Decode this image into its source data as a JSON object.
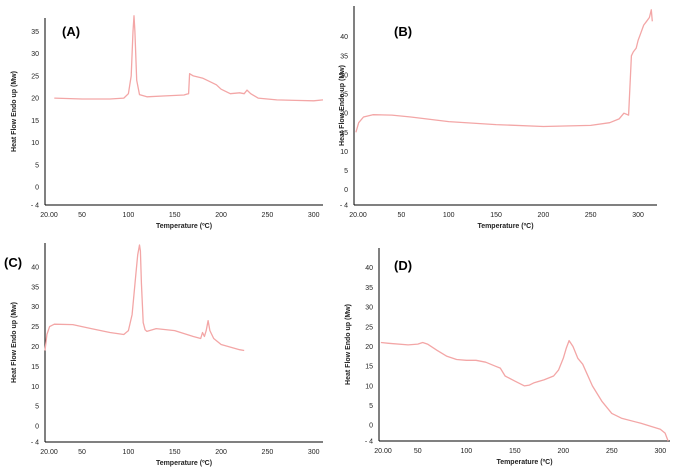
{
  "chart_data": [
    {
      "type": "line",
      "panel_label": "(A)",
      "xlabel": "Temperature (ºC)",
      "ylabel": "Heat Flow Endo up (Mw)",
      "xlim": [
        10,
        310
      ],
      "ylim": [
        -4,
        38
      ],
      "x_ticks": [
        "20.00",
        "50",
        "100",
        "150",
        "200",
        "250",
        "300"
      ],
      "y_ticks": [
        "35",
        "30",
        "25",
        "20",
        "15",
        "10",
        "5",
        "0",
        "- 4"
      ],
      "series": [
        {
          "x": [
            20,
            50,
            80,
            95,
            100,
            103,
            105,
            106,
            107,
            109,
            112,
            120,
            140,
            160,
            163,
            165,
            166,
            170,
            180,
            190,
            195,
            200,
            210,
            220,
            225,
            228,
            232,
            240,
            260,
            280,
            300,
            310
          ],
          "y": [
            20,
            19.8,
            19.8,
            20,
            21,
            25,
            35,
            38.5,
            35,
            24,
            20.8,
            20.3,
            20.5,
            20.7,
            20.9,
            21,
            25.5,
            25,
            24.5,
            23.5,
            23,
            22,
            21,
            21.2,
            21,
            21.8,
            21,
            20,
            19.6,
            19.5,
            19.4,
            19.6
          ]
        }
      ]
    },
    {
      "type": "line",
      "panel_label": "(B)",
      "xlabel": "Temperature (ºC)",
      "ylabel": "Heat Flow Endo up (Mw)",
      "xlim": [
        0,
        320
      ],
      "ylim": [
        -4,
        48
      ],
      "x_ticks": [
        "20.00",
        "50",
        "100",
        "150",
        "200",
        "250",
        "300"
      ],
      "y_ticks": [
        "40",
        "35",
        "30",
        "25",
        "20",
        "15",
        "10",
        "5",
        "0",
        "- 4"
      ],
      "series": [
        {
          "x": [
            2,
            5,
            10,
            20,
            40,
            60,
            100,
            150,
            200,
            250,
            270,
            280,
            285,
            290,
            293,
            295,
            298,
            300,
            303,
            306,
            309,
            312,
            314,
            315
          ],
          "y": [
            15,
            17.5,
            19,
            19.6,
            19.5,
            19,
            17.8,
            17,
            16.5,
            16.8,
            17.5,
            18.5,
            20,
            19.5,
            35,
            36,
            37,
            39,
            41,
            43,
            44,
            45,
            47,
            44
          ]
        }
      ]
    },
    {
      "type": "line",
      "panel_label": "(C)",
      "xlabel": "Temperature (ºC)",
      "ylabel": "Heat Flow Endo up (Mw)",
      "xlim": [
        10,
        310
      ],
      "ylim": [
        -4,
        46
      ],
      "x_ticks": [
        "20.00",
        "50",
        "100",
        "150",
        "200",
        "250",
        "300"
      ],
      "y_ticks": [
        "40",
        "35",
        "30",
        "25",
        "20",
        "15",
        "10",
        "5",
        "0",
        "- 4"
      ],
      "series": [
        {
          "x": [
            10,
            12,
            15,
            20,
            40,
            60,
            80,
            95,
            100,
            104,
            108,
            110,
            112,
            113,
            114,
            116,
            118,
            120,
            130,
            150,
            170,
            178,
            180,
            182,
            184,
            186,
            188,
            192,
            200,
            220,
            225
          ],
          "y": [
            19,
            23,
            25,
            25.6,
            25.5,
            24.5,
            23.5,
            23,
            24,
            28,
            38,
            43,
            45.5,
            44,
            36,
            26,
            24.2,
            23.8,
            24.5,
            24,
            22.5,
            22,
            23.5,
            22.5,
            24,
            26.5,
            24,
            22,
            20.5,
            19.2,
            19
          ]
        }
      ]
    },
    {
      "type": "line",
      "panel_label": "(D)",
      "xlabel": "Temperature (ºC)",
      "ylabel": "Heat Flow Endo up (Mw)",
      "xlim": [
        10,
        310
      ],
      "ylim": [
        -4,
        45
      ],
      "x_ticks": [
        "20.00",
        "50",
        "100",
        "150",
        "200",
        "250",
        "300"
      ],
      "y_ticks": [
        "40",
        "35",
        "30",
        "25",
        "20",
        "15",
        "10",
        "5",
        "0",
        "- 4"
      ],
      "series": [
        {
          "x": [
            12,
            20,
            40,
            50,
            55,
            60,
            70,
            80,
            90,
            100,
            110,
            120,
            130,
            135,
            140,
            150,
            160,
            165,
            170,
            180,
            190,
            195,
            200,
            203,
            206,
            210,
            215,
            220,
            230,
            240,
            250,
            260,
            280,
            300,
            305,
            308
          ],
          "y": [
            21,
            20.8,
            20.4,
            20.6,
            21,
            20.6,
            19,
            17.5,
            16.7,
            16.5,
            16.5,
            16,
            15,
            14.5,
            12.5,
            11.2,
            10,
            10.2,
            10.8,
            11.5,
            12.5,
            14,
            17,
            19.5,
            21.5,
            20,
            17,
            15.5,
            10,
            6,
            3,
            1.8,
            0.5,
            -1,
            -2,
            -4
          ]
        }
      ]
    }
  ]
}
